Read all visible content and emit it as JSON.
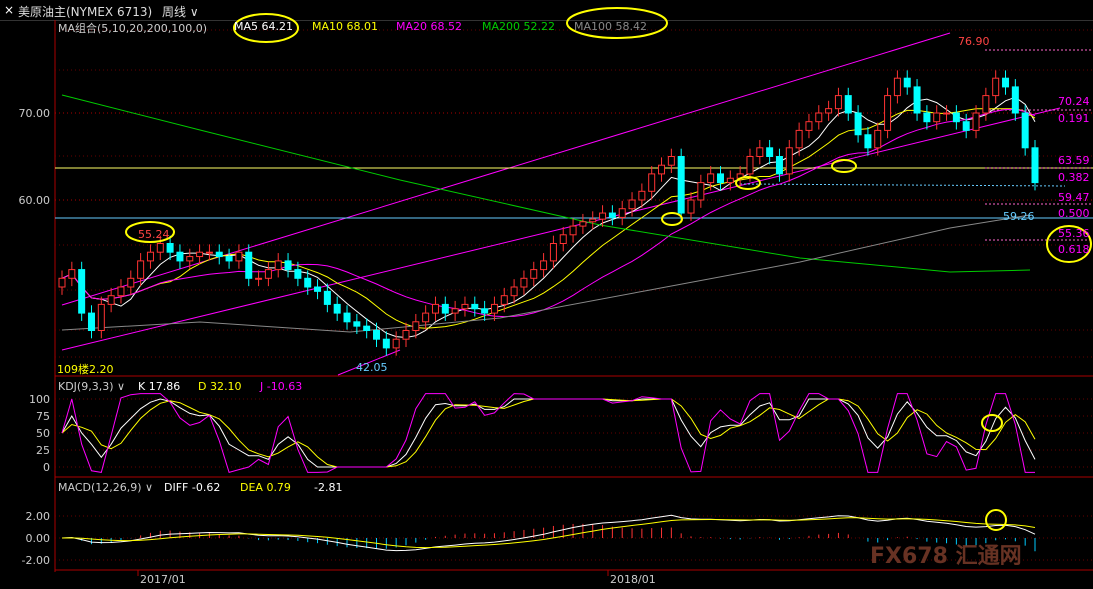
{
  "header": {
    "instrument": "美原油主(NYMEX 6713)",
    "period": "周线",
    "close_icon": "close-icon"
  },
  "ma_legend": {
    "title": "MA组合(5,10,20,200,100,0)",
    "items": [
      {
        "label": "MA5",
        "value": "64.21",
        "color": "#ffffff"
      },
      {
        "label": "MA10",
        "value": "68.01",
        "color": "#ffff00"
      },
      {
        "label": "MA20",
        "value": "68.52",
        "color": "#ff00ff"
      },
      {
        "label": "MA200",
        "value": "52.22",
        "color": "#00cc00"
      },
      {
        "label": "MA100",
        "value": "58.42",
        "color": "#888888"
      }
    ]
  },
  "kdj_legend": {
    "title": "KDJ(9,3,3)",
    "k": "K 17.86",
    "d": "D 32.10",
    "j": "J -10.63"
  },
  "macd_legend": {
    "title": "MACD(12,26,9)",
    "diff": "DIFF -0.62",
    "dea": "DEA 0.79",
    "macd": "-2.81"
  },
  "price_labels": {
    "high": "76.90",
    "left_high": "55.24",
    "low_2017": "42.05",
    "low_left": "109楼2.20",
    "support": "59.26"
  },
  "fib_levels": [
    {
      "price": "70.24",
      "ratio": "0.191"
    },
    {
      "price": "63.59",
      "ratio": "0.382"
    },
    {
      "price": "59.47",
      "ratio": "0.500"
    },
    {
      "price": "55.36",
      "ratio": "0.618"
    }
  ],
  "watermark": "FX678 汇通网",
  "highlight_color": "#ffff00",
  "up_color": "#ff3333",
  "down_color": "#00ffff",
  "chart_data": [
    {
      "type": "candlestick",
      "title": "美原油主(NYMEX 6713) 周线",
      "x_ticks": [
        "2017/01",
        "2018/01"
      ],
      "y_ticks": [
        60.0,
        70.0
      ],
      "ylim": [
        40.5,
        80
      ],
      "n": 100,
      "annotations": [
        "76.90",
        "55.24",
        "42.05",
        "59.26"
      ],
      "closes": [
        51,
        52,
        47,
        45,
        48,
        49,
        50,
        51,
        53,
        54,
        55,
        54,
        53,
        53.5,
        54,
        54,
        53.5,
        53,
        54,
        51,
        51,
        52,
        53,
        52,
        51,
        50,
        49.5,
        48,
        47,
        46,
        45.5,
        45,
        44,
        43,
        44,
        45,
        46,
        47,
        48,
        47,
        47.5,
        48,
        47.5,
        47,
        48,
        49,
        50,
        51,
        52,
        53,
        55,
        56,
        57,
        57.5,
        57.8,
        58.5,
        58,
        59,
        60,
        61,
        63,
        64,
        65,
        58.5,
        60,
        62,
        63,
        62,
        62.5,
        63,
        65,
        66,
        65,
        63,
        66,
        68,
        69,
        70,
        70.5,
        72,
        70,
        67.5,
        66,
        68,
        72,
        74,
        73,
        70,
        69,
        70,
        70,
        69,
        68,
        70,
        72,
        74,
        73,
        70,
        66,
        62
      ],
      "series": [
        {
          "name": "MA5",
          "value": "64.21"
        },
        {
          "name": "MA10",
          "value": "68.01"
        },
        {
          "name": "MA20",
          "value": "68.52"
        },
        {
          "name": "MA200",
          "value": "52.22"
        },
        {
          "name": "MA100",
          "value": "58.42"
        }
      ]
    },
    {
      "type": "line",
      "title": "KDJ(9,3,3)",
      "y_ticks": [
        0,
        25,
        50,
        75,
        100
      ],
      "latest": {
        "K": 17.86,
        "D": 32.1,
        "J": -10.63
      }
    },
    {
      "type": "bar",
      "title": "MACD(12,26,9)",
      "y_ticks": [
        -2.0,
        0.0,
        2.0
      ],
      "latest": {
        "DIFF": -0.62,
        "DEA": 0.79,
        "MACD": -2.81
      }
    }
  ]
}
